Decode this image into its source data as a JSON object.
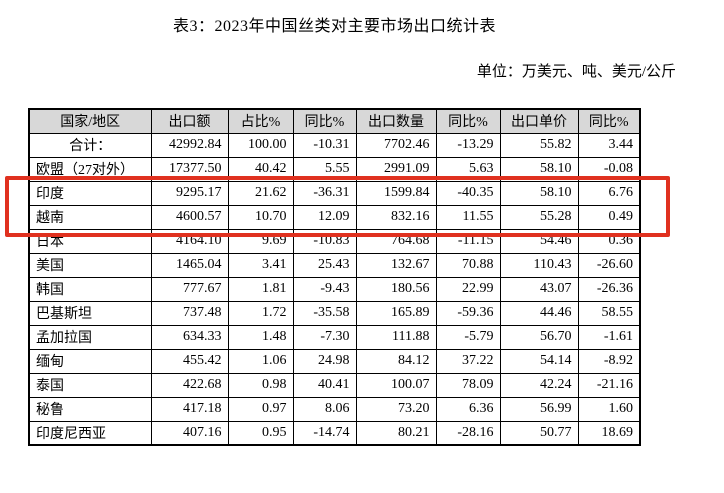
{
  "page": {
    "title": "表3：2023年中国丝类对主要市场出口统计表",
    "unit_note": "单位：万美元、吨、美元/公斤"
  },
  "table": {
    "columns": [
      "国家/地区",
      "出口额",
      "占比%",
      "同比%",
      "出口数量",
      "同比%",
      "出口单价",
      "同比%"
    ],
    "rows": [
      {
        "name": "合计：",
        "name_align": "center",
        "values": [
          "42992.84",
          "100.00",
          "-10.31",
          "7702.46",
          "-13.29",
          "55.82",
          "3.44"
        ]
      },
      {
        "name": "欧盟（27对外）",
        "values": [
          "17377.50",
          "40.42",
          "5.55",
          "2991.09",
          "5.63",
          "58.10",
          "-0.08"
        ]
      },
      {
        "name": "印度",
        "highlighted": true,
        "values": [
          "9295.17",
          "21.62",
          "-36.31",
          "1599.84",
          "-40.35",
          "58.10",
          "6.76"
        ]
      },
      {
        "name": "越南",
        "highlighted": true,
        "values": [
          "4600.57",
          "10.70",
          "12.09",
          "832.16",
          "11.55",
          "55.28",
          "0.49"
        ]
      },
      {
        "name": "日本",
        "values": [
          "4164.10",
          "9.69",
          "-10.83",
          "764.68",
          "-11.15",
          "54.46",
          "0.36"
        ]
      },
      {
        "name": "美国",
        "values": [
          "1465.04",
          "3.41",
          "25.43",
          "132.67",
          "70.88",
          "110.43",
          "-26.60"
        ]
      },
      {
        "name": "韩国",
        "values": [
          "777.67",
          "1.81",
          "-9.43",
          "180.56",
          "22.99",
          "43.07",
          "-26.36"
        ]
      },
      {
        "name": "巴基斯坦",
        "values": [
          "737.48",
          "1.72",
          "-35.58",
          "165.89",
          "-59.36",
          "44.46",
          "58.55"
        ]
      },
      {
        "name": "孟加拉国",
        "values": [
          "634.33",
          "1.48",
          "-7.30",
          "111.88",
          "-5.79",
          "56.70",
          "-1.61"
        ]
      },
      {
        "name": "缅甸",
        "values": [
          "455.42",
          "1.06",
          "24.98",
          "84.12",
          "37.22",
          "54.14",
          "-8.92"
        ]
      },
      {
        "name": "泰国",
        "values": [
          "422.68",
          "0.98",
          "40.41",
          "100.07",
          "78.09",
          "42.24",
          "-21.16"
        ]
      },
      {
        "name": "秘鲁",
        "values": [
          "417.18",
          "0.97",
          "8.06",
          "73.20",
          "6.36",
          "56.99",
          "1.60"
        ]
      },
      {
        "name": "印度尼西亚",
        "values": [
          "407.16",
          "0.95",
          "-14.74",
          "80.21",
          "-28.16",
          "50.77",
          "18.69"
        ]
      }
    ]
  },
  "annotation": {
    "highlight_color": "#e0311f",
    "highlighted_rows": [
      "印度",
      "越南"
    ]
  },
  "colors": {
    "header_background": "#d8d8d8",
    "table_border": "#000000",
    "text": "#000000"
  }
}
